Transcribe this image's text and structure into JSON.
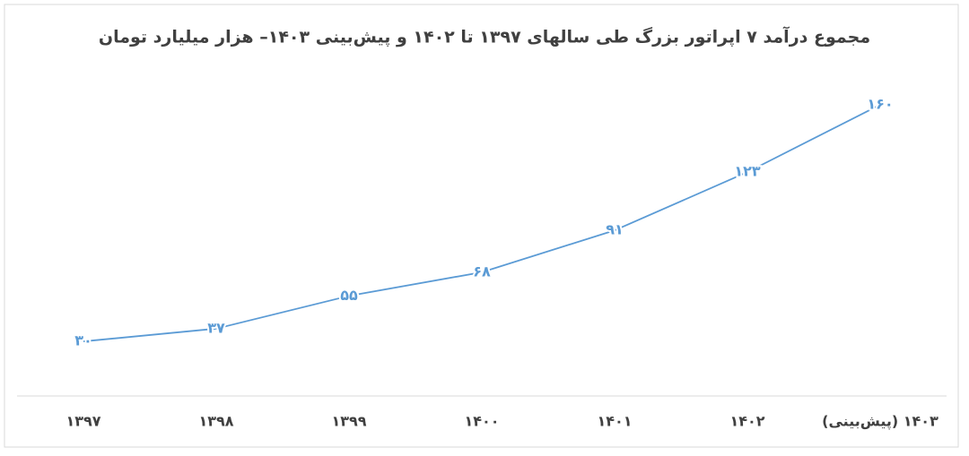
{
  "chart_data": {
    "type": "line",
    "title": "مجموع درآمد ۷ اپراتور بزرگ طی سالهای ۱۳۹۷ تا ۱۴۰۲ و پیش‌بینی ۱۴۰۳– هزار میلیارد تومان",
    "categories": [
      "۱۳۹۷",
      "۱۳۹۸",
      "۱۳۹۹",
      "۱۴۰۰",
      "۱۴۰۱",
      "۱۴۰۲",
      "۱۴۰۳ (پیش‌بینی)"
    ],
    "series": [
      {
        "color": "#5b9bd5",
        "values": [
          30,
          37,
          55,
          68,
          91,
          123,
          160
        ],
        "value_labels": [
          "۳۰",
          "۳۷",
          "۵۵",
          "۶۸",
          "۹۱",
          "۱۲۳",
          "۱۶۰"
        ]
      }
    ],
    "ylim": [
      0,
      190
    ]
  }
}
